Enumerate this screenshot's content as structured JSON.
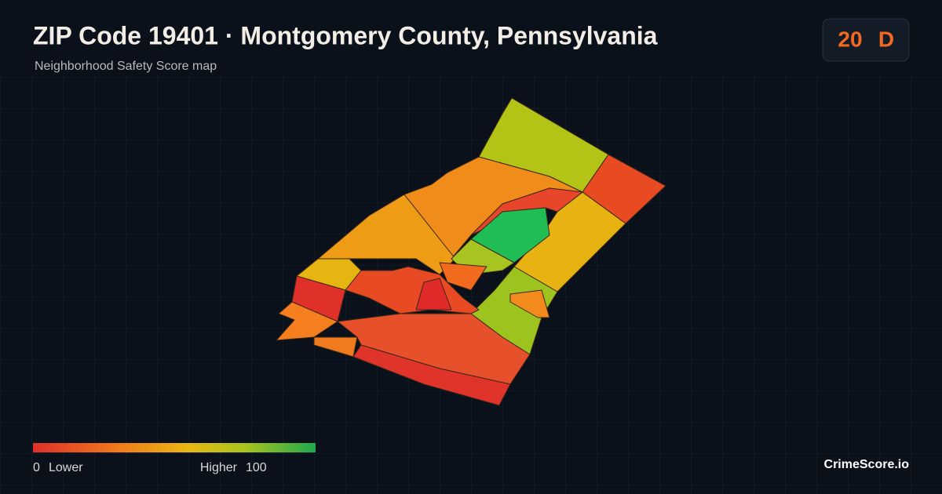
{
  "header": {
    "title": "ZIP Code 19401 · Montgomery County, Pennsylvania",
    "subtitle": "Neighborhood Safety Score map"
  },
  "badge": {
    "score": 20,
    "grade": "D"
  },
  "legend": {
    "min": 0,
    "min_label": "Lower",
    "max_label": "Higher",
    "max": 100
  },
  "footer": {
    "brand": "CrimeScore.io"
  }
}
